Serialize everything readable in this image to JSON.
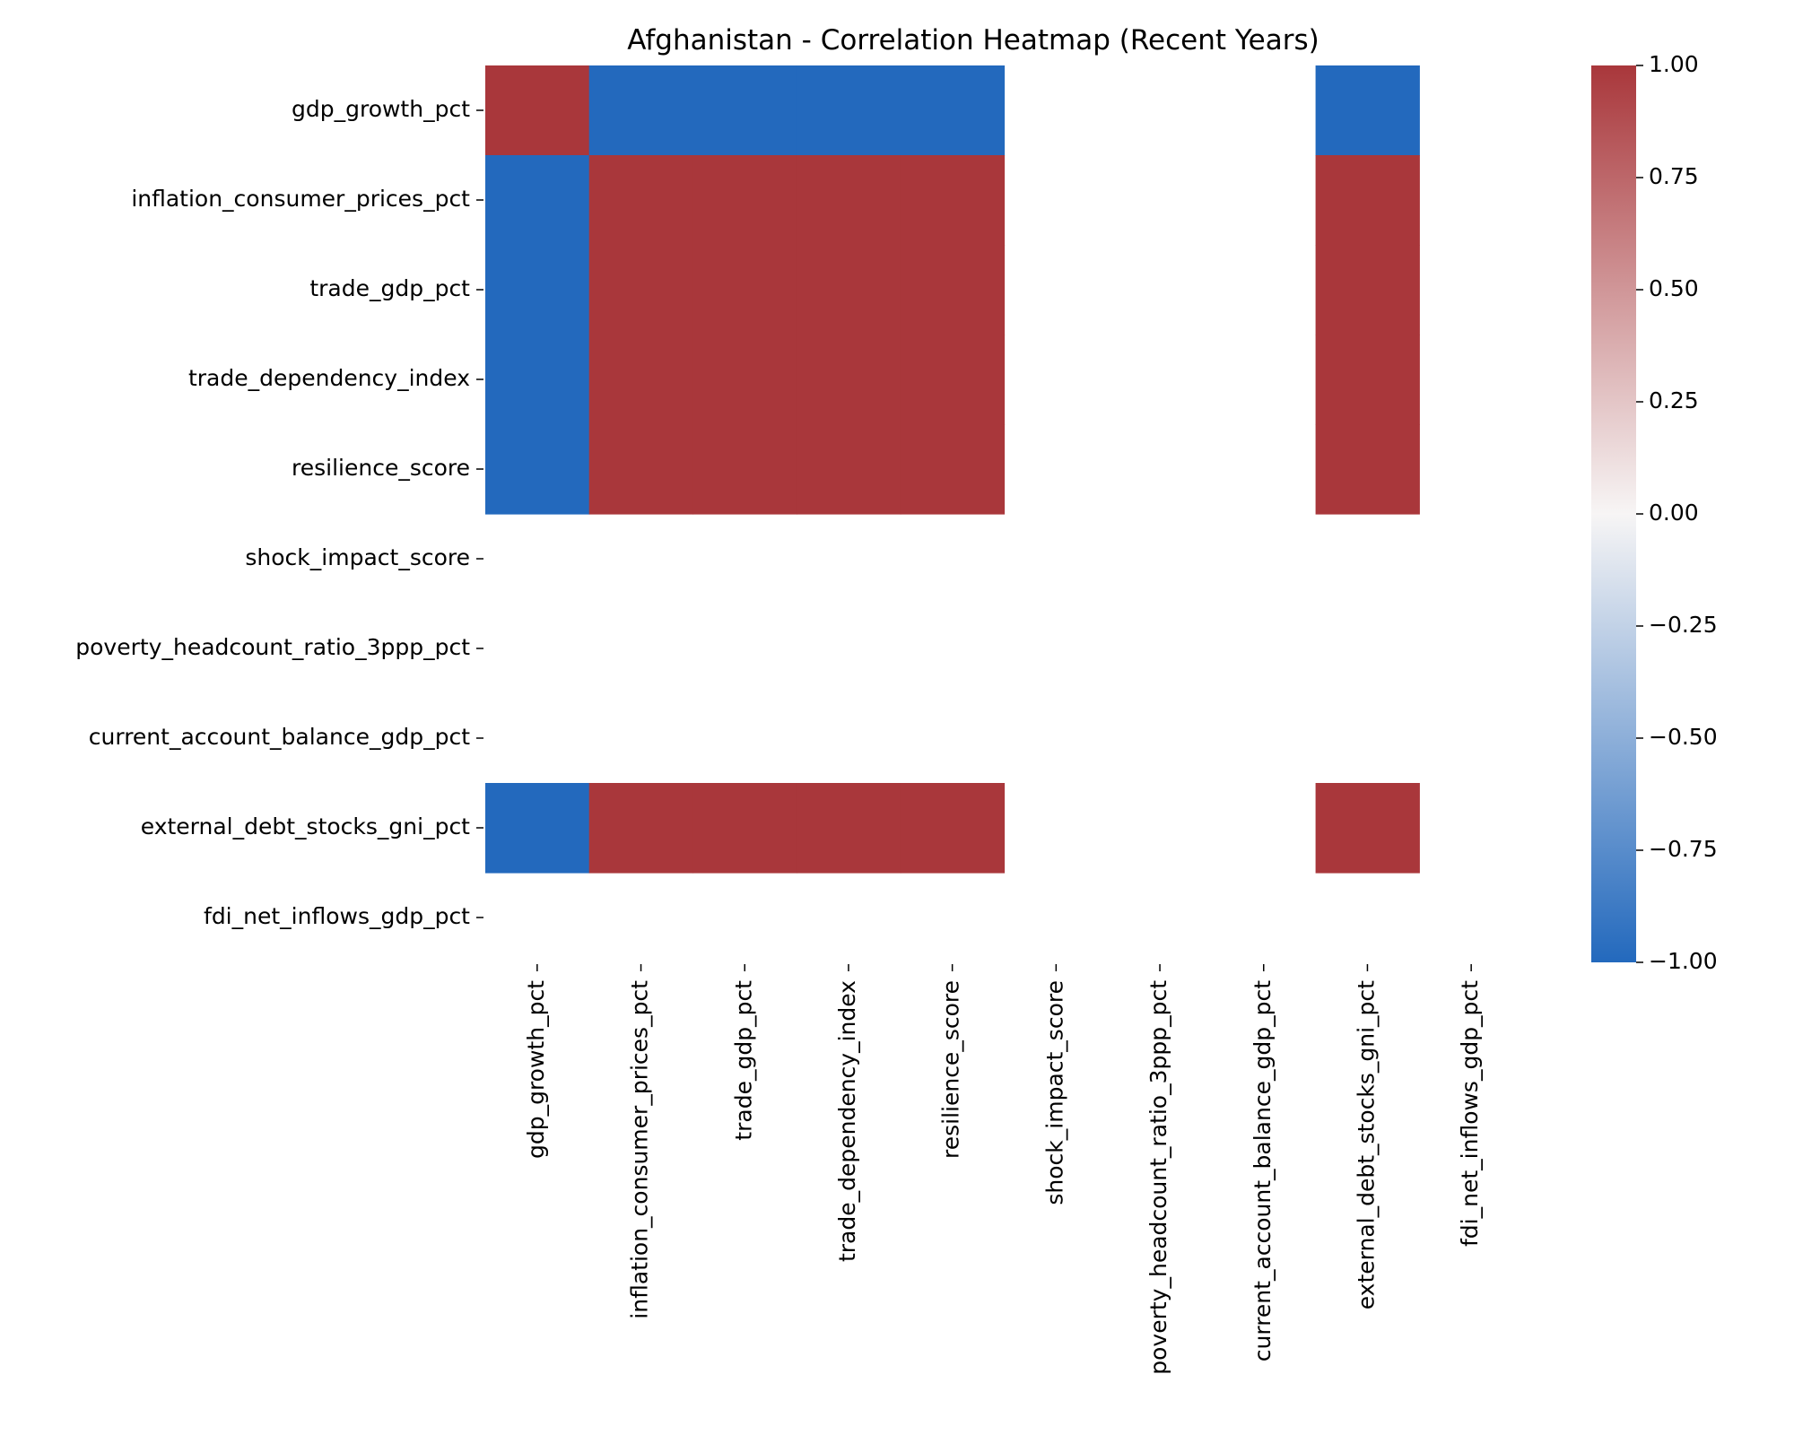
{
  "chart_data": {
    "type": "heatmap",
    "title": "Afghanistan - Correlation Heatmap (Recent Years)",
    "xlabel": "",
    "ylabel": "",
    "rows": [
      "gdp_growth_pct",
      "inflation_consumer_prices_pct",
      "trade_gdp_pct",
      "trade_dependency_index",
      "resilience_score",
      "shock_impact_score",
      "poverty_headcount_ratio_3ppp_pct",
      "current_account_balance_gdp_pct",
      "external_debt_stocks_gni_pct",
      "fdi_net_inflows_gdp_pct"
    ],
    "columns": [
      "gdp_growth_pct",
      "inflation_consumer_prices_pct",
      "trade_gdp_pct",
      "trade_dependency_index",
      "resilience_score",
      "shock_impact_score",
      "poverty_headcount_ratio_3ppp_pct",
      "current_account_balance_gdp_pct",
      "external_debt_stocks_gni_pct",
      "fdi_net_inflows_gdp_pct"
    ],
    "values": [
      [
        1,
        -1,
        -1,
        -1,
        -1,
        null,
        null,
        null,
        -1,
        null
      ],
      [
        -1,
        1,
        1,
        1,
        1,
        null,
        null,
        null,
        1,
        null
      ],
      [
        -1,
        1,
        1,
        1,
        1,
        null,
        null,
        null,
        1,
        null
      ],
      [
        -1,
        1,
        1,
        1,
        1,
        null,
        null,
        null,
        1,
        null
      ],
      [
        -1,
        1,
        1,
        1,
        1,
        null,
        null,
        null,
        1,
        null
      ],
      [
        null,
        null,
        null,
        null,
        null,
        null,
        null,
        null,
        null,
        null
      ],
      [
        null,
        null,
        null,
        null,
        null,
        null,
        null,
        null,
        null,
        null
      ],
      [
        null,
        null,
        null,
        null,
        null,
        null,
        null,
        null,
        null,
        null
      ],
      [
        -1,
        1,
        1,
        1,
        1,
        null,
        null,
        null,
        1,
        null
      ],
      [
        null,
        null,
        null,
        null,
        null,
        null,
        null,
        null,
        null,
        null
      ]
    ],
    "colorbar": {
      "min": -1,
      "max": 1,
      "ticks": [
        1,
        0.75,
        0.5,
        0.25,
        0,
        -0.25,
        -0.5,
        -0.75,
        -1
      ],
      "tick_labels": [
        "1.00",
        "0.75",
        "0.50",
        "0.25",
        "0.00",
        "−0.25",
        "−0.50",
        "−0.75",
        "−1.00"
      ],
      "colormap": "vlag",
      "color_low": "#2369bd",
      "color_mid": "#f7f5f5",
      "color_high": "#a9373b"
    }
  }
}
